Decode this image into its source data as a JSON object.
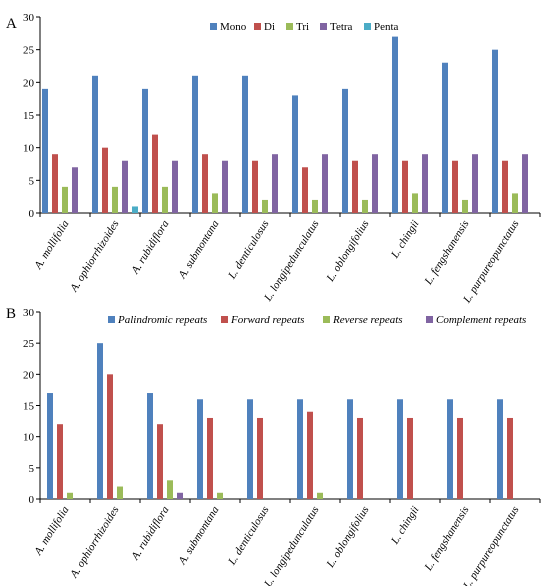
{
  "colors": {
    "blue": "#4f81bd",
    "red": "#c0504d",
    "green": "#9bbb59",
    "purple": "#8064a2",
    "cyan": "#4bacc6"
  },
  "chart_data": [
    {
      "panel_label": "A",
      "type": "bar",
      "categories": [
        "A. mollifolia",
        "A. ophiorrhizoides",
        "A. rubidiflora",
        "A. submontana",
        "L. denticulosus",
        "L. longipedunculatus",
        "L. oblongifolius",
        "L. chingii",
        "L. fengshanensis",
        "L. purpureopunctatus"
      ],
      "category_style": "italic",
      "ylim": [
        0,
        30
      ],
      "yticks": [
        0,
        5,
        10,
        15,
        20,
        25,
        30
      ],
      "legend_position": "top",
      "legend_style": "normal",
      "series": [
        {
          "name": "Mono",
          "color": "#4f81bd",
          "values": [
            19,
            21,
            19,
            21,
            21,
            18,
            19,
            27,
            23,
            25
          ]
        },
        {
          "name": "Di",
          "color": "#c0504d",
          "values": [
            9,
            10,
            12,
            9,
            8,
            7,
            8,
            8,
            8,
            8
          ]
        },
        {
          "name": "Tri",
          "color": "#9bbb59",
          "values": [
            4,
            4,
            4,
            3,
            2,
            2,
            2,
            3,
            2,
            3
          ]
        },
        {
          "name": "Tetra",
          "color": "#8064a2",
          "values": [
            7,
            8,
            8,
            8,
            9,
            9,
            9,
            9,
            9,
            9
          ]
        },
        {
          "name": "Penta",
          "color": "#4bacc6",
          "values": [
            0,
            1,
            0,
            0,
            0,
            0,
            0,
            0,
            0,
            0
          ]
        }
      ]
    },
    {
      "panel_label": "B",
      "type": "bar",
      "categories": [
        "A. mollifolia",
        "A. ophiorrhizoides",
        "A. rubidiflora",
        "A. submontana",
        "L. denticulosus",
        "L. longipedunculatus",
        "L. oblongifolius",
        "L. chingii",
        "L. fengshanensis",
        "L. purpureopunctatus"
      ],
      "category_style": "italic",
      "ylim": [
        0,
        30
      ],
      "yticks": [
        0,
        5,
        10,
        15,
        20,
        25,
        30
      ],
      "legend_position": "top",
      "legend_style": "italic",
      "series": [
        {
          "name": "Palindromic repeats",
          "color": "#4f81bd",
          "values": [
            17,
            25,
            17,
            16,
            16,
            16,
            16,
            16,
            16,
            16
          ]
        },
        {
          "name": "Forward repeats",
          "color": "#c0504d",
          "values": [
            12,
            20,
            12,
            13,
            13,
            14,
            13,
            13,
            13,
            13
          ]
        },
        {
          "name": "Reverse repeats",
          "color": "#9bbb59",
          "values": [
            1,
            2,
            3,
            1,
            0,
            1,
            0,
            0,
            0,
            0
          ]
        },
        {
          "name": "Complement repeats",
          "color": "#8064a2",
          "values": [
            0,
            0,
            1,
            0,
            0,
            0,
            0,
            0,
            0,
            0
          ]
        }
      ]
    }
  ]
}
